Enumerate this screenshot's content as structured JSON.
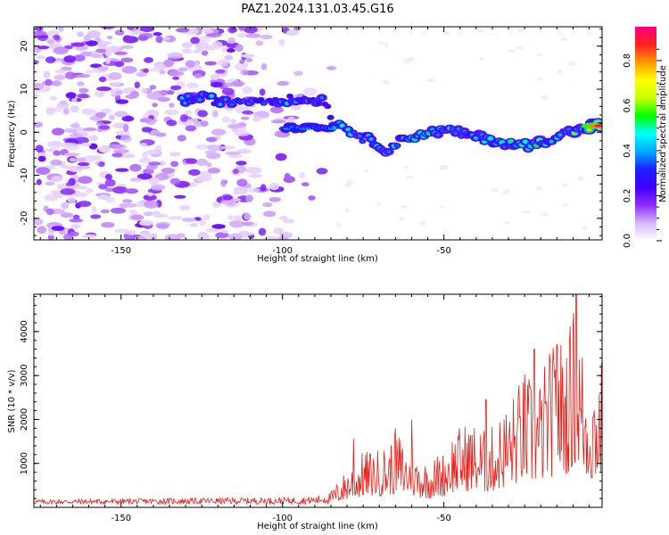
{
  "title": "PAZ1.2024.131.03.45.G16",
  "chart_data": [
    {
      "type": "heatmap",
      "xlabel": "Height of straight line (km)",
      "ylabel": "Frequency (Hz)",
      "xlim": [
        -177,
        -1
      ],
      "ylim": [
        -25,
        24.5
      ],
      "xticks": [
        -150,
        -100,
        -50
      ],
      "yticks": [
        20,
        10,
        0,
        -10,
        -20
      ],
      "colorbar": {
        "label": "Normalized spectral amplitude",
        "range": [
          0,
          0.95
        ],
        "ticks": [
          0.0,
          0.2,
          0.4,
          0.6,
          0.8
        ],
        "colormap": [
          "#ffffff",
          "#d8b6ff",
          "#8e2cff",
          "#3d00ff",
          "#1f1fff",
          "#00a8ff",
          "#00ffff",
          "#00ff00",
          "#c8ff00",
          "#ffff00",
          "#ff9900",
          "#ff2020",
          "#ff0080"
        ]
      },
      "ridge": {
        "x": [
          -131,
          -124,
          -118,
          -110,
          -104,
          -98,
          -92,
          -87,
          -84,
          -80,
          -76,
          -72,
          -68,
          -63,
          -58,
          -53,
          -48,
          -44,
          -40,
          -36,
          -32,
          -28,
          -24,
          -20,
          -16,
          -12,
          -8,
          -4,
          -1
        ],
        "y": [
          7.5,
          8.0,
          7.0,
          7.5,
          7.5,
          7.5,
          7.5,
          7.5,
          2.0,
          1.0,
          -1.0,
          -2.0,
          -4.0,
          -2.0,
          -0.5,
          0.0,
          0.5,
          -0.5,
          -1.0,
          -1.5,
          -2.5,
          -3.0,
          -3.0,
          -2.5,
          -1.0,
          0.0,
          0.5,
          1.5,
          1.5
        ],
        "amplitude": [
          0.45,
          0.45,
          0.35,
          0.35,
          0.3,
          0.4,
          0.35,
          0.35,
          0.4,
          0.45,
          0.4,
          0.45,
          0.5,
          0.45,
          0.5,
          0.5,
          0.45,
          0.4,
          0.45,
          0.5,
          0.45,
          0.5,
          0.55,
          0.6,
          0.45,
          0.5,
          0.55,
          0.7,
          0.95
        ]
      }
    },
    {
      "type": "line",
      "xlabel": "Height of straight line (km)",
      "ylabel": "SNR (10 * v/v)",
      "xlim": [
        -177,
        -1
      ],
      "ylim": [
        0,
        4850
      ],
      "xticks": [
        -150,
        -100,
        -50
      ],
      "yticks": [
        1000,
        2000,
        3000,
        4000
      ],
      "series": [
        {
          "color": "#e8201a",
          "envelope": {
            "x": [
              -177,
              -150,
              -120,
              -100,
              -90,
              -85,
              -82,
              -78,
              -75,
              -70,
              -67,
              -64,
              -62,
              -58,
              -55,
              -52,
              -50,
              -48,
              -45,
              -42,
              -40,
              -37,
              -35,
              -32,
              -30,
              -28,
              -25,
              -22,
              -20,
              -18,
              -15,
              -12,
              -10,
              -9,
              -8,
              -6,
              -4,
              -2,
              -1
            ],
            "y": [
              150,
              170,
              190,
              200,
              220,
              320,
              600,
              900,
              1100,
              1150,
              1250,
              1500,
              1200,
              1000,
              900,
              1050,
              1100,
              1450,
              1600,
              1700,
              1650,
              1500,
              1600,
              1900,
              2100,
              2300,
              2700,
              2400,
              2600,
              3000,
              3300,
              3400,
              3800,
              4850,
              3600,
              2800,
              2600,
              2900,
              3000
            ]
          },
          "peaks": [
            {
              "x": -9,
              "y": 4850
            },
            {
              "x": -10,
              "y": 4150
            },
            {
              "x": -15,
              "y": 3700
            },
            {
              "x": -22,
              "y": 3600
            },
            {
              "x": -37,
              "y": 2450
            },
            {
              "x": -60,
              "y": 2000
            },
            {
              "x": -65,
              "y": 1800
            },
            {
              "x": -78,
              "y": 1570
            }
          ]
        }
      ]
    }
  ]
}
